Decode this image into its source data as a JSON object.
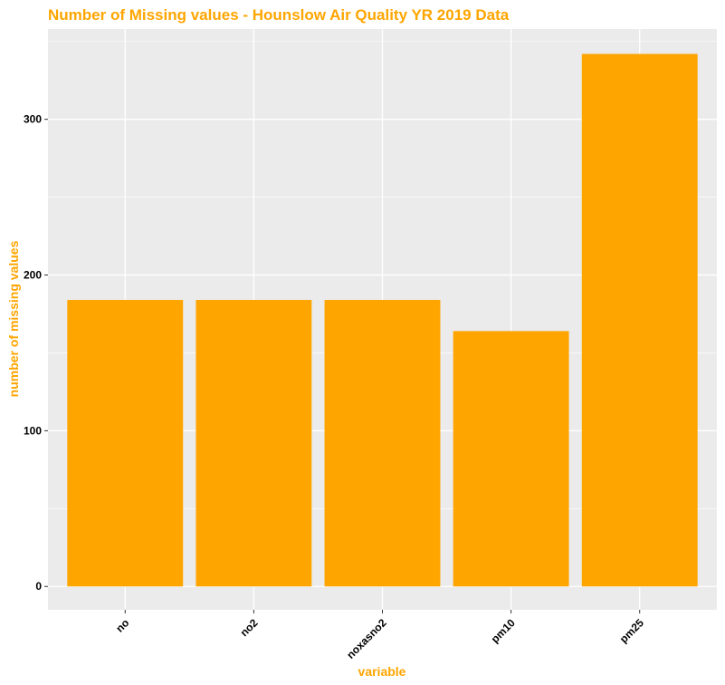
{
  "chart_data": {
    "type": "bar",
    "title": "Number of Missing values - Hounslow Air Quality YR 2019 Data",
    "xlabel": "variable",
    "ylabel": "number of missing values",
    "categories": [
      "no",
      "no2",
      "noxasno2",
      "pm10",
      "pm25"
    ],
    "values": [
      184,
      184,
      184,
      164,
      342
    ],
    "ylim": [
      -15,
      358
    ],
    "yticks": [
      0,
      100,
      200,
      300
    ],
    "grid": true,
    "legend": "none"
  },
  "colors": {
    "bar": "#FFA500",
    "title": "#FFA500",
    "axis_title": "#FFA500",
    "panel_background": "#EBEBEB",
    "grid": "#FFFFFF"
  }
}
